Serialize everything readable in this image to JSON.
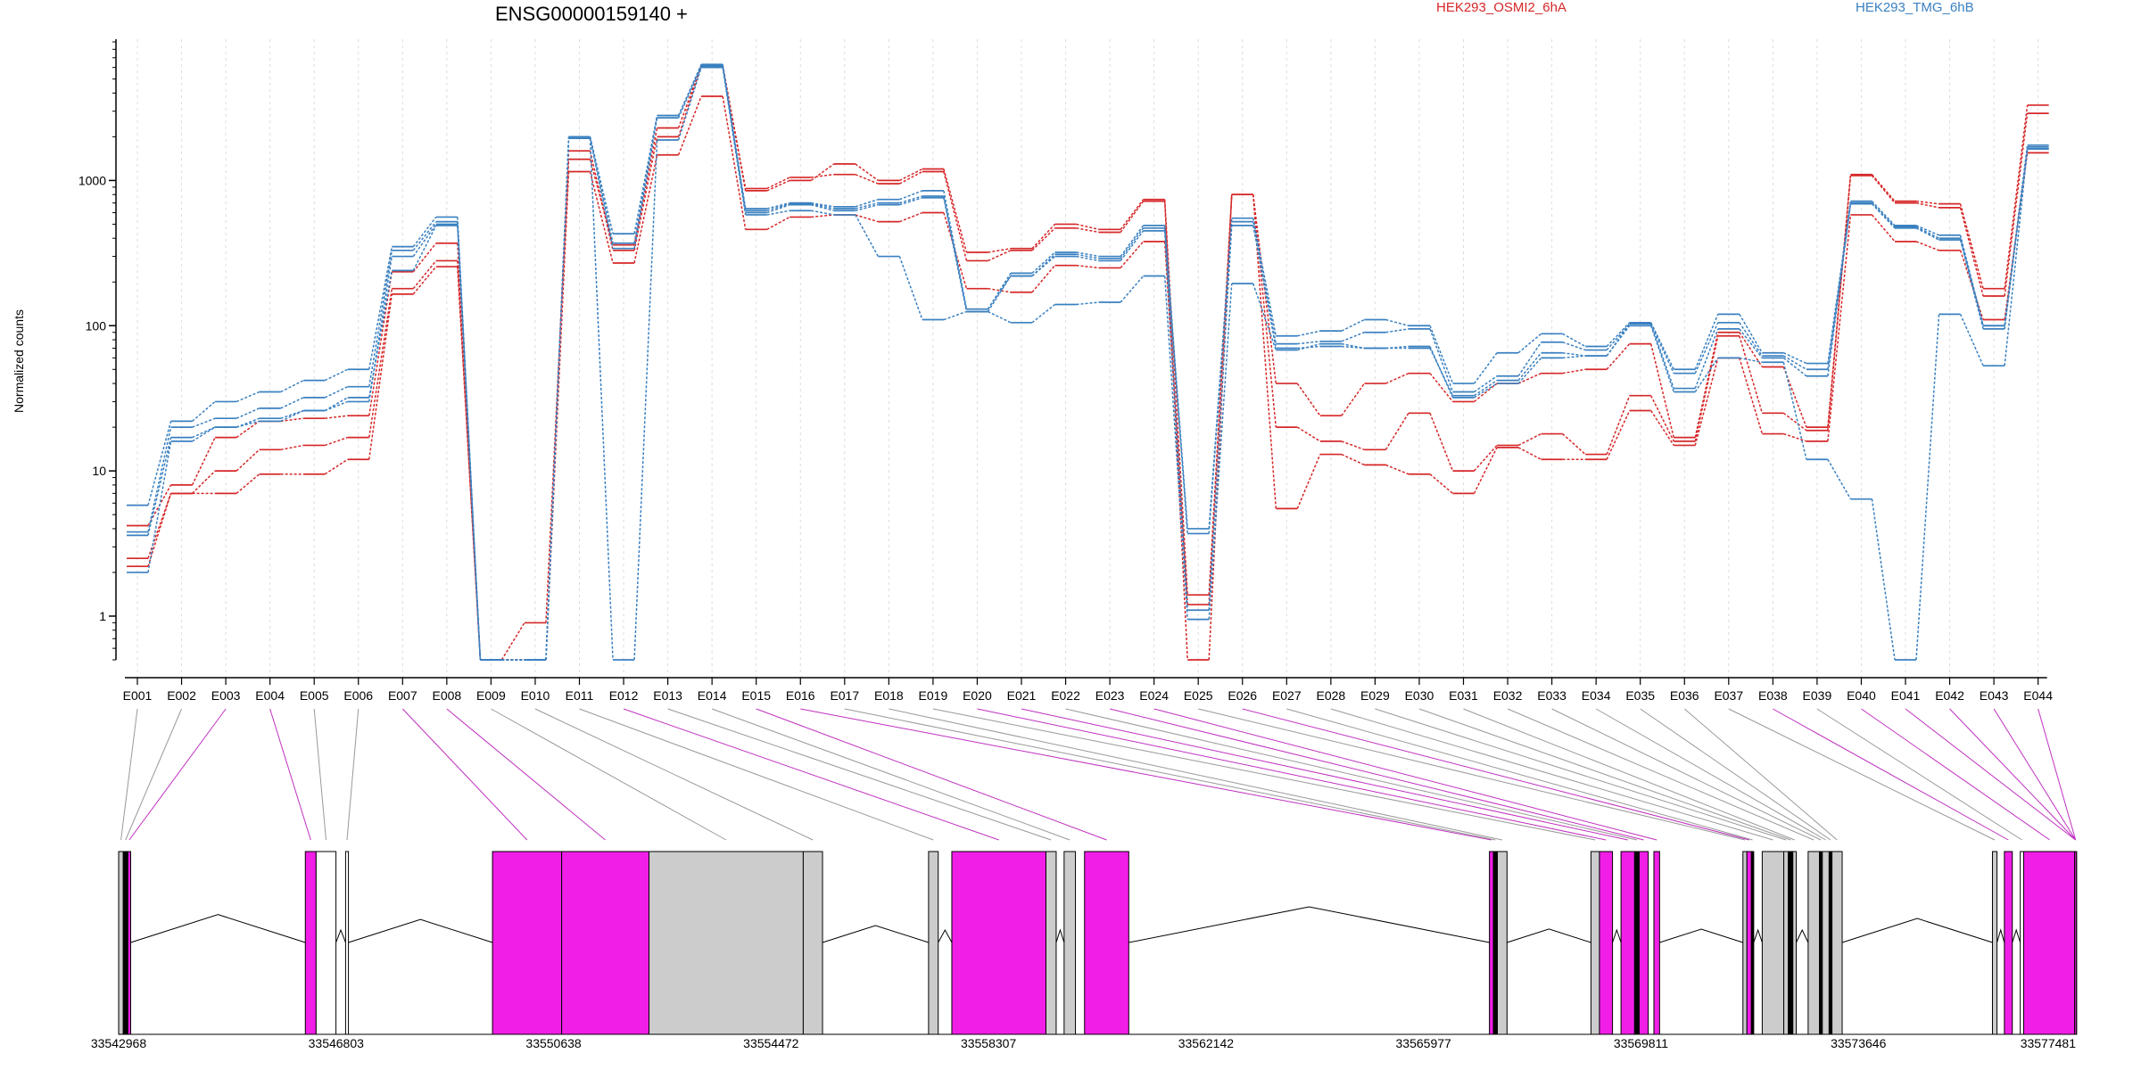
{
  "chart_data": {
    "type": "line",
    "title": "ENSG00000159140 +",
    "ylabel": "Normalized counts",
    "yscale": "log",
    "ylim": [
      0.5,
      9000
    ],
    "yticks": [
      "1",
      "10",
      "100",
      "1000"
    ],
    "grid": "vertical dashed at exon midpoints",
    "legend": [
      {
        "name": "HEK293_OSMI2_6hA",
        "color": "#d62728"
      },
      {
        "name": "HEK293_TMG_6hB",
        "color": "#3a80c0"
      }
    ],
    "exons": [
      "E001",
      "E002",
      "E003",
      "E004",
      "E005",
      "E006",
      "E007",
      "E008",
      "E009",
      "E010",
      "E011",
      "E012",
      "E013",
      "E014",
      "E015",
      "E016",
      "E017",
      "E018",
      "E019",
      "E020",
      "E021",
      "E022",
      "E023",
      "E024",
      "E025",
      "E026",
      "E027",
      "E028",
      "E029",
      "E030",
      "E031",
      "E032",
      "E033",
      "E034",
      "E035",
      "E036",
      "E037",
      "E038",
      "E039",
      "E040",
      "E041",
      "E042",
      "E043",
      "E044"
    ],
    "series": [
      {
        "group": "HEK293_OSMI2_6hA",
        "color": "#d62728",
        "values": [
          4.2,
          8,
          17,
          22,
          23,
          24,
          235,
          370,
          0.5,
          0.5,
          1600,
          330,
          2000,
          6200,
          850,
          1000,
          1300,
          1000,
          1200,
          320,
          340,
          500,
          460,
          740,
          1.4,
          800,
          40,
          24,
          40,
          47,
          30,
          40,
          47,
          50,
          75,
          17,
          90,
          52,
          20,
          1100,
          720,
          690,
          180,
          3300
        ]
      },
      {
        "group": "HEK293_OSMI2_6hA",
        "color": "#d62728",
        "values": [
          2.5,
          7,
          10,
          14,
          15,
          17,
          180,
          280,
          0.5,
          0.9,
          1400,
          360,
          2300,
          6200,
          880,
          1050,
          1100,
          950,
          1150,
          280,
          330,
          470,
          440,
          720,
          0.5,
          800,
          20,
          16,
          14,
          25,
          10,
          15,
          18,
          13,
          33,
          16,
          85,
          25,
          19,
          1080,
          700,
          650,
          160,
          2900
        ]
      },
      {
        "group": "HEK293_OSMI2_6hA",
        "color": "#d62728",
        "values": [
          2.2,
          7,
          7,
          9.5,
          9.5,
          12,
          165,
          255,
          0.5,
          0.5,
          1150,
          270,
          1500,
          3800,
          460,
          560,
          580,
          520,
          600,
          180,
          170,
          260,
          250,
          380,
          1.2,
          800,
          5.5,
          13,
          11,
          9.5,
          7,
          14.5,
          12,
          12,
          26,
          15,
          60,
          18,
          16,
          580,
          380,
          330,
          110,
          1550
        ]
      },
      {
        "group": "HEK293_TMG_6hB",
        "color": "#3a80c0",
        "values": [
          5.8,
          22,
          30,
          35,
          42,
          50,
          350,
          560,
          0.5,
          0.5,
          2000,
          430,
          2800,
          6300,
          640,
          700,
          660,
          740,
          850,
          130,
          230,
          320,
          300,
          490,
          4,
          550,
          85,
          92,
          110,
          100,
          40,
          65,
          88,
          72,
          105,
          50,
          120,
          65,
          55,
          720,
          490,
          420,
          100,
          1750
        ]
      },
      {
        "group": "HEK293_TMG_6hB",
        "color": "#3a80c0",
        "values": [
          3.8,
          20,
          23,
          27,
          32,
          38,
          330,
          520,
          0.5,
          0.5,
          2000,
          370,
          2800,
          6200,
          620,
          690,
          640,
          700,
          780,
          130,
          220,
          310,
          290,
          470,
          3.7,
          520,
          75,
          78,
          90,
          95,
          35,
          45,
          77,
          68,
          103,
          47,
          105,
          62,
          50,
          700,
          480,
          400,
          100,
          1700
        ]
      },
      {
        "group": "HEK293_TMG_6hB",
        "color": "#3a80c0",
        "values": [
          3.6,
          17,
          20,
          23,
          26,
          30,
          300,
          500,
          0.5,
          0.5,
          1950,
          340,
          2700,
          6100,
          600,
          680,
          620,
          680,
          760,
          125,
          220,
          300,
          280,
          450,
          1.1,
          490,
          70,
          72,
          70,
          70,
          33,
          42,
          65,
          62,
          103,
          37,
          95,
          60,
          45,
          690,
          470,
          390,
          95,
          1650
        ]
      },
      {
        "group": "HEK293_TMG_6hB",
        "color": "#3a80c0",
        "values": [
          2,
          16,
          20,
          22,
          26,
          32,
          240,
          490,
          0.5,
          0.5,
          1950,
          0.5,
          1900,
          6000,
          580,
          620,
          580,
          300,
          110,
          125,
          105,
          140,
          145,
          220,
          0.95,
          195,
          68,
          75,
          70,
          72,
          32,
          40,
          60,
          62,
          100,
          35,
          60,
          56,
          12,
          6.4,
          0.5,
          120,
          53,
          1650
        ]
      }
    ],
    "gene_model": {
      "start": 33542968,
      "end": 33577481,
      "coord_labels": [
        "33542968",
        "33546803",
        "33550638",
        "33554472",
        "33558307",
        "33562142",
        "33565977",
        "33569811",
        "33573646",
        "33577481"
      ],
      "features": [
        {
          "s": 33542968,
          "e": 33543050,
          "c": "gray",
          "x": 1
        },
        {
          "s": 33543050,
          "e": 33543130,
          "c": "black",
          "x": 2
        },
        {
          "s": 33543130,
          "e": 33543180,
          "c": "magenta",
          "x": 3
        },
        {
          "s": 33546260,
          "e": 33546450,
          "c": "magenta",
          "x": 4
        },
        {
          "s": 33546450,
          "e": 33546800,
          "c": "white",
          "x": 5
        },
        {
          "s": 33546970,
          "e": 33547020,
          "c": "white",
          "x": 6
        },
        {
          "s": 33549560,
          "e": 33550780,
          "c": "magenta",
          "x": 7
        },
        {
          "s": 33550780,
          "e": 33552320,
          "c": "magenta",
          "x": 8
        },
        {
          "s": 33552320,
          "e": 33555040,
          "c": "gray",
          "x": 9
        },
        {
          "s": 33555040,
          "e": 33555380,
          "c": "gray",
          "x": 10
        },
        {
          "s": 33557250,
          "e": 33557420,
          "c": "gray",
          "x": 11
        },
        {
          "s": 33557660,
          "e": 33559320,
          "c": "magenta",
          "x": 12
        },
        {
          "s": 33559320,
          "e": 33559500,
          "c": "gray",
          "x": 13
        },
        {
          "s": 33559640,
          "e": 33559840,
          "c": "gray",
          "x": 14
        },
        {
          "s": 33560000,
          "e": 33560780,
          "c": "magenta",
          "x": 15
        },
        {
          "s": 33567140,
          "e": 33567210,
          "c": "magenta",
          "x": 16
        },
        {
          "s": 33567210,
          "e": 33567280,
          "c": "black",
          "x": 17
        },
        {
          "s": 33567280,
          "e": 33567450,
          "c": "gray",
          "x": 18
        },
        {
          "s": 33568930,
          "e": 33569080,
          "c": "gray",
          "x": 19
        },
        {
          "s": 33569080,
          "e": 33569310,
          "c": "magenta",
          "x": 20
        },
        {
          "s": 33569460,
          "e": 33569700,
          "c": "magenta",
          "x": 21
        },
        {
          "s": 33569700,
          "e": 33569780,
          "c": "black",
          "x": 22
        },
        {
          "s": 33569780,
          "e": 33569940,
          "c": "magenta",
          "x": 23
        },
        {
          "s": 33570040,
          "e": 33570140,
          "c": "magenta",
          "x": 24
        },
        {
          "s": 33571610,
          "e": 33571680,
          "c": "gray",
          "x": 25
        },
        {
          "s": 33571680,
          "e": 33571760,
          "c": "magenta",
          "x": 26
        },
        {
          "s": 33571760,
          "e": 33571800,
          "c": "black",
          "x": 27
        },
        {
          "s": 33571950,
          "e": 33572330,
          "c": "gray",
          "x": 28
        },
        {
          "s": 33572330,
          "e": 33572410,
          "c": "gray",
          "x": 29
        },
        {
          "s": 33572410,
          "e": 33572490,
          "c": "black",
          "x": 30
        },
        {
          "s": 33572490,
          "e": 33572550,
          "c": "gray",
          "x": 31
        },
        {
          "s": 33572760,
          "e": 33572960,
          "c": "gray",
          "x": 32
        },
        {
          "s": 33572960,
          "e": 33573010,
          "c": "black",
          "x": 33
        },
        {
          "s": 33573010,
          "e": 33573130,
          "c": "gray",
          "x": 34
        },
        {
          "s": 33573130,
          "e": 33573180,
          "c": "black",
          "x": 35
        },
        {
          "s": 33573180,
          "e": 33573360,
          "c": "gray",
          "x": 36
        },
        {
          "s": 33576010,
          "e": 33576090,
          "c": "gray",
          "x": 37
        },
        {
          "s": 33576220,
          "e": 33576360,
          "c": "magenta",
          "x": 38
        },
        {
          "s": 33576500,
          "e": 33576560,
          "c": "white",
          "x": 39
        },
        {
          "s": 33576560,
          "e": 33577481,
          "c": "magenta",
          "x": 40
        },
        {
          "s": 33577460,
          "e": 33577481,
          "c": "magenta",
          "x": 41
        },
        {
          "s": 33577460,
          "e": 33577481,
          "c": "magenta",
          "x": 42
        },
        {
          "s": 33577460,
          "e": 33577481,
          "c": "magenta",
          "x": 43
        },
        {
          "s": 33577460,
          "e": 33577481,
          "c": "magenta",
          "x": 44
        }
      ],
      "introns": [
        [
          33543180,
          33546260
        ],
        [
          33546800,
          33546970
        ],
        [
          33547020,
          33549560
        ],
        [
          33555380,
          33557250
        ],
        [
          33557420,
          33557660
        ],
        [
          33559500,
          33559640
        ],
        [
          33560780,
          33567140
        ],
        [
          33567450,
          33568930
        ],
        [
          33569310,
          33569460
        ],
        [
          33570140,
          33571610
        ],
        [
          33571800,
          33571950
        ],
        [
          33572550,
          33572760
        ],
        [
          33573360,
          33576010
        ],
        [
          33576090,
          33576220
        ],
        [
          33576360,
          33576500
        ]
      ]
    }
  }
}
